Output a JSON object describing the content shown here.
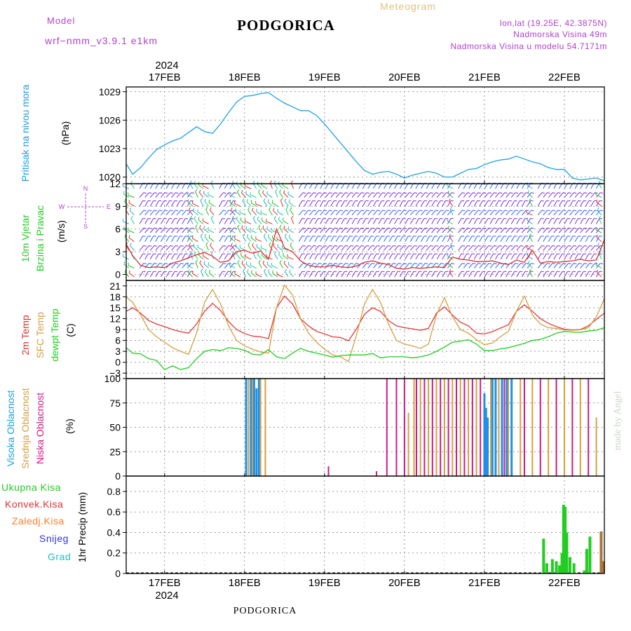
{
  "header": {
    "model_label": "Model",
    "model_name": "wrf−nmm_v3.9.1  e1km",
    "station_title": "PODGORICA",
    "meteogram_label": "Meteogram",
    "location_line": "lon,lat (19.25E, 42.3875N)",
    "elevation_line": "Nadmorska Visina 49m",
    "model_elevation_line": "Nadmorska Visina u modelu 54.7171m",
    "year_label": "2024",
    "footer_title": "PODGORICA",
    "watermark": "made by Angel"
  },
  "colors": {
    "pressure": "#1ea0e6",
    "wind_speed": "#e03030",
    "wind_gust": "#000000",
    "temp_2m": "#e03a3a",
    "temp_sfc": "#d4a040",
    "dewpoint": "#22cc22",
    "cloud_high": "#1e90e6",
    "cloud_mid": "#d4a040",
    "cloud_low": "#cc1a88",
    "precip_total": "#22cc22",
    "precip_conv": "#e03030",
    "precip_frozen": "#ff7f27",
    "snow": "#3030e0",
    "graupel": "#20c0c0",
    "magenta_text": "#b040d0"
  },
  "x_axis": {
    "dates": [
      "17FEB",
      "18FEB",
      "19FEB",
      "20FEB",
      "21FEB",
      "22FEB"
    ],
    "start_day": 16.52,
    "end_day": 22.5
  },
  "panels": {
    "pressure": {
      "ylabel": [
        "Pritisak na nivou mora"
      ],
      "unit": "(hPa)",
      "ticks": [
        "1020",
        "1023",
        "1026",
        "1029"
      ]
    },
    "wind": {
      "ylabel": [
        "10m Vjetar",
        "Brzina i Pravac"
      ],
      "unit": "(m/s)",
      "ticks": [
        "0",
        "3",
        "6",
        "9",
        "12"
      ],
      "compass": {
        "n": "N",
        "s": "S",
        "e": "E",
        "w": "W"
      }
    },
    "temp": {
      "ylabel": [
        "2m Temp",
        "SFC Temp",
        "dewpt Temp"
      ],
      "unit": "(C)",
      "ticks": [
        "−3",
        "0",
        "3",
        "6",
        "9",
        "12",
        "15",
        "18",
        "21"
      ]
    },
    "cloud": {
      "ylabel": [
        "Visoka Oblacnost",
        "Srednja Oblacnost",
        "Niska Oblacnost"
      ],
      "unit": "(%)",
      "ticks": [
        "0",
        "25",
        "50",
        "75",
        "100"
      ]
    },
    "precip": {
      "legend": [
        "Ukupna Kisa",
        "Konvek.Kisa",
        "Zaledj.Kisa",
        "Snijeg",
        "Grad"
      ],
      "ylabel": "1hr Precip (mm)",
      "ticks": [
        "0",
        "0.2",
        "0.4",
        "0.6",
        "0.8"
      ]
    }
  },
  "chart_data": [
    {
      "type": "line",
      "title": "Pritisak na nivou mora",
      "ylabel": "(hPa)",
      "ylim": [
        1019.3,
        1029.5
      ],
      "series": [
        {
          "x": [
            16.52,
            16.6,
            16.7,
            16.8,
            16.9,
            17.0,
            17.1,
            17.2,
            17.3,
            17.4,
            17.5,
            17.6,
            17.7,
            17.8,
            17.9,
            18.0,
            18.1,
            18.2,
            18.3,
            18.4,
            18.5,
            18.6,
            18.7,
            18.8,
            18.9,
            19.0,
            19.1,
            19.2,
            19.3,
            19.4,
            19.5,
            19.6,
            19.7,
            19.8,
            19.9,
            20.0,
            20.1,
            20.2,
            20.3,
            20.4,
            20.5,
            20.6,
            20.7,
            20.8,
            20.9,
            21.0,
            21.1,
            21.2,
            21.3,
            21.4,
            21.5,
            21.6,
            21.7,
            21.8,
            21.9,
            22.0,
            22.1,
            22.2,
            22.3,
            22.4,
            22.5
          ],
          "values": [
            1021.4,
            1020.3,
            1021.0,
            1022.0,
            1022.9,
            1023.4,
            1023.8,
            1024.1,
            1024.7,
            1025.3,
            1024.8,
            1024.6,
            1025.6,
            1026.8,
            1027.9,
            1028.5,
            1028.6,
            1028.8,
            1028.9,
            1028.3,
            1027.8,
            1027.4,
            1027.0,
            1027.0,
            1026.5,
            1025.6,
            1024.6,
            1023.6,
            1022.6,
            1021.6,
            1020.7,
            1020.3,
            1020.5,
            1020.6,
            1020.3,
            1019.9,
            1020.2,
            1020.4,
            1020.6,
            1020.4,
            1020.0,
            1020.0,
            1020.4,
            1020.8,
            1020.9,
            1021.3,
            1021.6,
            1021.8,
            1021.9,
            1022.2,
            1021.9,
            1021.6,
            1021.4,
            1021.0,
            1020.8,
            1020.8,
            1019.9,
            1019.7,
            1019.8,
            1019.9,
            1019.6
          ]
        }
      ]
    },
    {
      "type": "line",
      "title": "10m Vjetar Brzina i Pravac",
      "ylabel": "(m/s)",
      "ylim": [
        -0.8,
        12
      ],
      "series": [
        {
          "x": [
            16.52,
            16.6,
            16.7,
            16.8,
            16.9,
            17.0,
            17.1,
            17.2,
            17.3,
            17.4,
            17.5,
            17.6,
            17.7,
            17.8,
            17.9,
            18.0,
            18.1,
            18.2,
            18.3,
            18.4,
            18.5,
            18.6,
            18.7,
            18.8,
            18.9,
            19.0,
            19.1,
            19.2,
            19.3,
            19.4,
            19.5,
            19.6,
            19.7,
            19.8,
            19.9,
            20.0,
            20.1,
            20.2,
            20.3,
            20.4,
            20.5,
            20.6,
            20.7,
            20.8,
            20.9,
            21.0,
            21.1,
            21.2,
            21.3,
            21.4,
            21.5,
            21.6,
            21.7,
            21.8,
            21.9,
            22.0,
            22.1,
            22.2,
            22.3,
            22.4,
            22.5
          ],
          "values": [
            4.0,
            2.5,
            1.2,
            0.9,
            1.0,
            0.9,
            1.5,
            1.8,
            2.2,
            2.6,
            2.9,
            2.4,
            1.6,
            1.8,
            3.0,
            3.2,
            2.8,
            3.1,
            2.0,
            6.0,
            3.5,
            3.0,
            1.8,
            1.2,
            1.0,
            1.0,
            1.2,
            1.0,
            0.9,
            1.1,
            1.6,
            1.8,
            1.5,
            1.3,
            0.8,
            0.7,
            0.9,
            0.8,
            0.9,
            1.0,
            0.9,
            2.3,
            2.0,
            1.9,
            1.7,
            1.7,
            1.8,
            1.5,
            1.3,
            1.9,
            1.6,
            3.2,
            1.5,
            1.7,
            1.6,
            1.7,
            1.8,
            2.0,
            1.8,
            1.9,
            4.6
          ]
        }
      ]
    },
    {
      "type": "line",
      "title": "2m Temp / SFC Temp / dewpt Temp",
      "ylabel": "(C)",
      "ylim": [
        -4.5,
        22.5
      ],
      "series": [
        {
          "name": "2m Temp",
          "x": [
            16.52,
            16.6,
            16.7,
            16.8,
            16.9,
            17.0,
            17.1,
            17.2,
            17.3,
            17.4,
            17.5,
            17.6,
            17.7,
            17.8,
            17.9,
            18.0,
            18.1,
            18.2,
            18.3,
            18.4,
            18.5,
            18.6,
            18.7,
            18.8,
            18.9,
            19.0,
            19.1,
            19.2,
            19.3,
            19.4,
            19.5,
            19.6,
            19.7,
            19.8,
            19.9,
            20.0,
            20.1,
            20.2,
            20.3,
            20.4,
            20.5,
            20.6,
            20.7,
            20.8,
            20.9,
            21.0,
            21.1,
            21.2,
            21.3,
            21.4,
            21.5,
            21.6,
            21.7,
            21.8,
            21.9,
            22.0,
            22.1,
            22.2,
            22.3,
            22.4,
            22.5
          ],
          "values": [
            14.0,
            15.0,
            13.5,
            11.5,
            10.5,
            9.8,
            9.0,
            8.4,
            8.0,
            10.5,
            14.0,
            16.2,
            14.2,
            11.2,
            9.0,
            7.9,
            7.2,
            7.0,
            6.5,
            15.0,
            18.2,
            16.0,
            12.0,
            10.0,
            8.5,
            7.8,
            7.0,
            6.8,
            5.9,
            9.2,
            13.2,
            15.0,
            14.0,
            11.5,
            10.0,
            9.5,
            9.2,
            8.8,
            9.3,
            13.5,
            15.2,
            13.0,
            11.0,
            10.0,
            8.0,
            7.8,
            8.4,
            9.4,
            10.3,
            14.0,
            15.8,
            14.0,
            12.0,
            10.7,
            9.8,
            9.1,
            8.9,
            9.0,
            10.0,
            11.8,
            13.5
          ]
        },
        {
          "name": "SFC Temp",
          "x": [
            16.52,
            16.6,
            16.7,
            16.8,
            16.9,
            17.0,
            17.1,
            17.2,
            17.3,
            17.4,
            17.5,
            17.6,
            17.7,
            17.8,
            17.9,
            18.0,
            18.1,
            18.2,
            18.3,
            18.4,
            18.5,
            18.6,
            18.7,
            18.8,
            18.9,
            19.0,
            19.1,
            19.2,
            19.3,
            19.4,
            19.5,
            19.6,
            19.7,
            19.8,
            19.9,
            20.0,
            20.1,
            20.2,
            20.3,
            20.4,
            20.5,
            20.6,
            20.7,
            20.8,
            20.9,
            21.0,
            21.1,
            21.2,
            21.3,
            21.4,
            21.5,
            21.6,
            21.7,
            21.8,
            21.9,
            22.0,
            22.1,
            22.2,
            22.3,
            22.4,
            22.5
          ],
          "values": [
            18.0,
            16.5,
            13.0,
            9.0,
            7.0,
            5.5,
            4.0,
            3.0,
            2.2,
            8.0,
            16.5,
            20.0,
            16.0,
            10.0,
            6.0,
            4.5,
            3.6,
            2.8,
            2.5,
            15.0,
            21.2,
            18.5,
            12.0,
            8.0,
            5.5,
            3.6,
            2.0,
            1.5,
            0.2,
            7.5,
            16.0,
            20.0,
            16.5,
            10.5,
            6.0,
            5.0,
            4.5,
            3.8,
            5.0,
            13.0,
            17.8,
            12.5,
            9.0,
            8.0,
            6.2,
            4.8,
            5.3,
            7.0,
            8.5,
            14.0,
            18.2,
            13.0,
            10.5,
            9.5,
            9.3,
            8.9,
            8.8,
            8.9,
            9.5,
            12.5,
            17.5
          ]
        },
        {
          "name": "dewpt Temp",
          "x": [
            16.52,
            16.6,
            16.7,
            16.8,
            16.9,
            17.0,
            17.1,
            17.2,
            17.3,
            17.4,
            17.5,
            17.6,
            17.7,
            17.8,
            17.9,
            18.0,
            18.1,
            18.2,
            18.3,
            18.4,
            18.5,
            18.6,
            18.7,
            18.8,
            18.9,
            19.0,
            19.1,
            19.2,
            19.3,
            19.4,
            19.5,
            19.6,
            19.7,
            19.8,
            19.9,
            20.0,
            20.1,
            20.2,
            20.3,
            20.4,
            20.5,
            20.6,
            20.7,
            20.8,
            20.9,
            21.0,
            21.1,
            21.2,
            21.3,
            21.4,
            21.5,
            21.6,
            21.7,
            21.8,
            21.9,
            22.0,
            22.1,
            22.2,
            22.3,
            22.4,
            22.5
          ],
          "values": [
            4.0,
            2.5,
            2.3,
            1.0,
            0.5,
            -2.0,
            -1.0,
            -2.0,
            -1.5,
            1.0,
            3.0,
            3.5,
            3.2,
            4.0,
            3.8,
            3.3,
            2.2,
            2.0,
            3.5,
            1.5,
            1.0,
            2.5,
            3.8,
            3.0,
            2.5,
            2.0,
            1.4,
            1.8,
            2.0,
            2.0,
            2.0,
            2.4,
            1.2,
            1.5,
            1.5,
            1.5,
            1.2,
            1.5,
            2.0,
            3.0,
            4.2,
            5.5,
            5.8,
            6.2,
            5.0,
            3.2,
            3.2,
            3.7,
            4.0,
            4.6,
            5.2,
            6.0,
            6.3,
            7.0,
            8.0,
            8.5,
            8.3,
            8.2,
            8.6,
            8.8,
            9.5
          ]
        }
      ]
    },
    {
      "type": "bar",
      "title": "Visoka / Srednja / Niska Oblacnost",
      "ylabel": "(%)",
      "ylim": [
        0,
        100
      ],
      "note": "Overcast bars near 18FEB, scattered 100% bars 19.8-22.5",
      "series": [
        {
          "name": "Visoka Oblacnost",
          "x": [
            18.02,
            18.08,
            18.12,
            18.15,
            18.18,
            21.0,
            21.02,
            21.04,
            21.1,
            21.14,
            21.22,
            21.28,
            21.34
          ],
          "values": [
            100,
            100,
            100,
            90,
            100,
            85,
            70,
            60,
            100,
            100,
            100,
            100,
            100
          ]
        },
        {
          "name": "Srednja Oblacnost",
          "x": [
            18.05,
            18.1,
            18.2,
            18.26,
            20.05,
            20.12,
            20.2,
            20.3,
            20.4,
            20.5,
            20.6,
            20.7,
            20.8,
            20.9,
            21.08,
            21.18,
            21.3,
            21.45,
            21.6,
            21.8,
            22.0,
            22.2,
            22.4
          ],
          "values": [
            100,
            100,
            100,
            100,
            65,
            100,
            100,
            100,
            100,
            100,
            100,
            100,
            100,
            100,
            100,
            100,
            100,
            100,
            100,
            100,
            100,
            100,
            60
          ]
        },
        {
          "name": "Niska Oblacnost",
          "x": [
            19.05,
            19.65,
            19.78,
            19.9,
            20.0,
            20.15,
            20.25,
            20.35,
            20.45,
            20.55,
            20.65,
            20.75,
            20.85,
            20.95,
            21.25,
            21.5,
            21.7,
            21.9,
            22.1,
            22.3
          ],
          "values": [
            10,
            5,
            100,
            100,
            100,
            100,
            100,
            100,
            100,
            100,
            100,
            100,
            100,
            100,
            100,
            100,
            100,
            100,
            100,
            100
          ]
        }
      ]
    },
    {
      "type": "bar",
      "title": "1hr Precip",
      "ylabel": "1hr Precip (mm)",
      "ylim": [
        0,
        0.95
      ],
      "series": [
        {
          "name": "Ukupna Kisa",
          "x": [
            21.74,
            21.78,
            21.85,
            21.9,
            21.94,
            21.97,
            21.99,
            22.01,
            22.03,
            22.07,
            22.12,
            22.25,
            22.28,
            22.32
          ],
          "values": [
            0.34,
            0.1,
            0.14,
            0.12,
            0.08,
            0.2,
            0.67,
            0.65,
            0.4,
            0.16,
            0.1,
            0.03,
            0.24,
            0.36
          ]
        },
        {
          "name": "Zaledj.Kisa",
          "x": [
            22.46,
            22.49
          ],
          "values": [
            0.41,
            0.12
          ]
        }
      ]
    },
    {
      "type": "scatter",
      "title": "Wind barbs (10m direction)",
      "note": "Wind barbs cover panel",
      "series": []
    }
  ]
}
